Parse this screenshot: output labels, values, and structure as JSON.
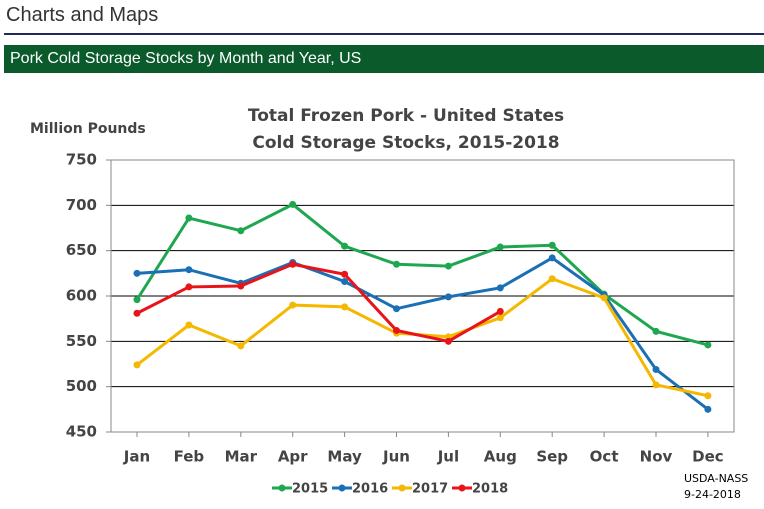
{
  "page_title": "Charts and Maps",
  "banner": "Pork Cold Storage Stocks by Month and Year, US",
  "chart_data": {
    "type": "line",
    "title": "Total Frozen Pork - United States",
    "subtitle": "Cold Storage Stocks, 2015-2018",
    "y_label": "Million Pounds",
    "annotation": [
      "USDA-NASS",
      "9-24-2018"
    ],
    "categories": [
      "Jan",
      "Feb",
      "Mar",
      "Apr",
      "May",
      "Jun",
      "Jul",
      "Aug",
      "Sep",
      "Oct",
      "Nov",
      "Dec"
    ],
    "series": [
      {
        "name": "2015",
        "color": "#1fa750",
        "values": [
          596,
          686,
          672,
          701,
          655,
          635,
          633,
          654,
          656,
          602,
          561,
          546
        ]
      },
      {
        "name": "2016",
        "color": "#1a6fb5",
        "values": [
          625,
          629,
          614,
          637,
          616,
          586,
          599,
          609,
          642,
          601,
          519,
          475
        ]
      },
      {
        "name": "2017",
        "color": "#f5b800",
        "values": [
          524,
          568,
          545,
          590,
          588,
          559,
          555,
          576,
          619,
          598,
          502,
          490
        ]
      },
      {
        "name": "2018",
        "color": "#e8141a",
        "values": [
          581,
          610,
          611,
          635,
          624,
          562,
          550,
          583,
          null,
          null,
          null,
          null
        ]
      }
    ],
    "ylim": [
      450,
      750
    ],
    "yticks": [
      450,
      500,
      550,
      600,
      650,
      700,
      750
    ],
    "grid": true,
    "legend": "bottom"
  }
}
